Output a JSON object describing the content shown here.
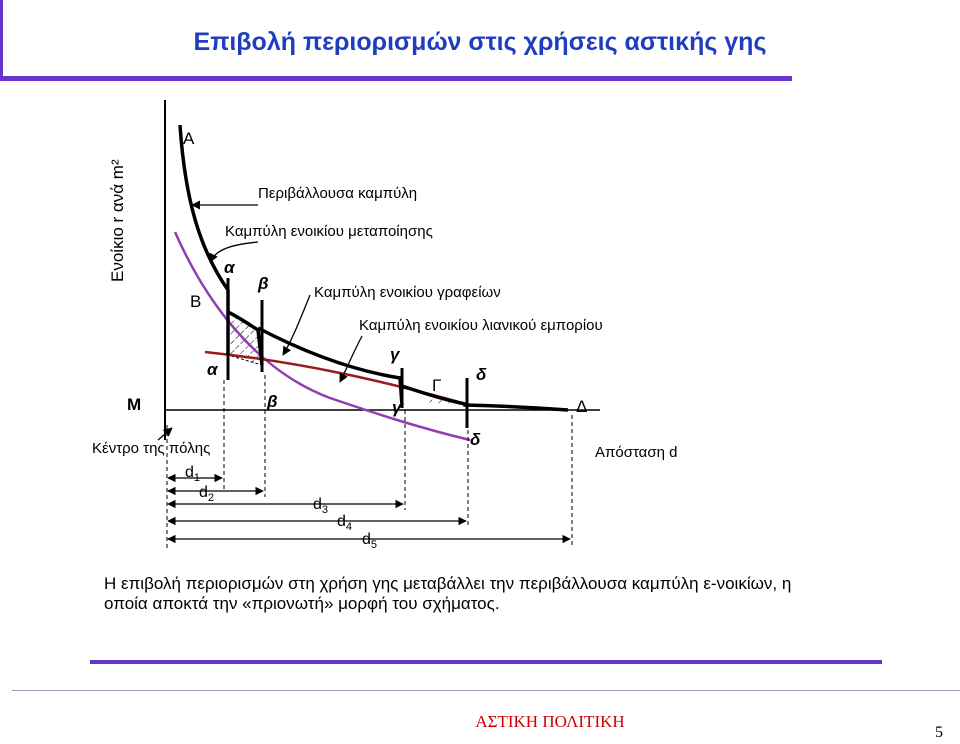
{
  "title": "Επιβολή περιορισμών στις χρήσεις αστικής γης",
  "y_axis_label": "Ενοίκιο r ανά m²",
  "points": {
    "A": "A",
    "B": "B",
    "M": "M",
    "Gamma": "Γ",
    "Delta": "Δ"
  },
  "curve_labels": {
    "envelope": "Περιβάλλουσα καμπύλη",
    "manufacturing": "Καμπύλη ενοικίου μεταποίησης",
    "offices": "Καμπύλη ενοικίου γραφείων",
    "retail": "Καμπύλη ενοικίου λιανικού εμπορίου"
  },
  "greek_marks": {
    "alpha_top": "α",
    "alpha_bottom": "α",
    "beta_top": "β",
    "beta_bottom": "β",
    "gamma_top": "γ",
    "gamma_bottom": "γ",
    "delta_top": "δ",
    "delta_bottom": "δ"
  },
  "city_center_label": "Κέντρο της πόλης",
  "distance_label": "Απόσταση d",
  "distances": {
    "d1": "d",
    "d1_sub": "1",
    "d2": "d",
    "d2_sub": "2",
    "d3": "d",
    "d3_sub": "3",
    "d4": "d",
    "d4_sub": "4",
    "d5": "d",
    "d5_sub": "5"
  },
  "caption": "Η επιβολή περιορισμών στη χρήση γης μεταβάλλει την περιβάλλουσα καμπύλη ε-νοικίων, η οποία αποκτά την «πριονωτή» μορφή του σχήματος.",
  "footer": "ΑΣΤΙΚΗ ΠΟΛΙΤΙΚΗ",
  "page_number": "5",
  "colors": {
    "title": "#1F3DBF",
    "bars": "#6633CC",
    "purple_curve": "#8E3FB0",
    "red_curve": "#9B1B1B",
    "footer": "#CC0000"
  }
}
